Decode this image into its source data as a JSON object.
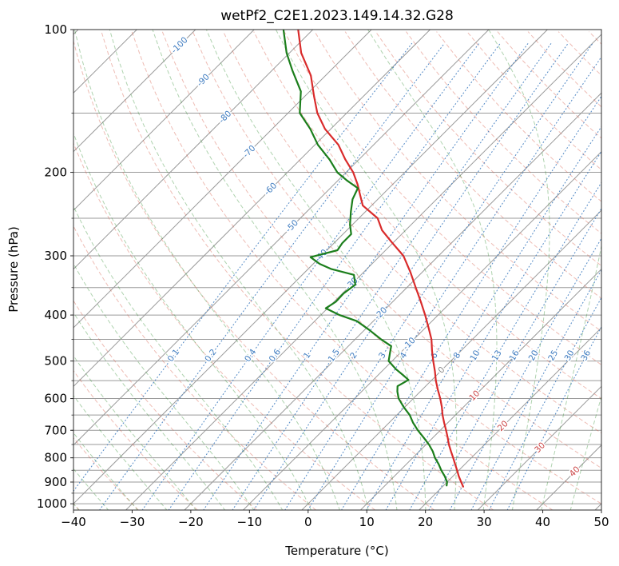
{
  "title": "wetPf2_C2E1.2023.149.14.32.G28",
  "chart_data": {
    "type": "line",
    "variant": "skew-t-log-p-sounding",
    "title": "wetPf2_C2E1.2023.149.14.32.G28",
    "axes": {
      "xlabel": "Temperature (°C)",
      "ylabel": "Pressure (hPa)",
      "t_min": -40,
      "t_max": 50,
      "p_top": 100,
      "p_bottom": 1031,
      "skew_deg_per_decade": 80.8,
      "x_ticks": [
        {
          "v": -40,
          "label": "−40"
        },
        {
          "v": -30,
          "label": "−30"
        },
        {
          "v": -20,
          "label": "−20"
        },
        {
          "v": -10,
          "label": "−10"
        },
        {
          "v": 0,
          "label": "0"
        },
        {
          "v": 10,
          "label": "10"
        },
        {
          "v": 20,
          "label": "20"
        },
        {
          "v": 30,
          "label": "30"
        },
        {
          "v": 40,
          "label": "40"
        },
        {
          "v": 50,
          "label": "50"
        }
      ],
      "y_ticks": [
        {
          "p": 100,
          "label": "100"
        },
        {
          "p": 200,
          "label": "200"
        },
        {
          "p": 300,
          "label": "300"
        },
        {
          "p": 400,
          "label": "400"
        },
        {
          "p": 500,
          "label": "500"
        },
        {
          "p": 600,
          "label": "600"
        },
        {
          "p": 700,
          "label": "700"
        },
        {
          "p": 800,
          "label": "800"
        },
        {
          "p": 900,
          "label": "900"
        },
        {
          "p": 1000,
          "label": "1000"
        }
      ]
    },
    "background": {
      "pressure_grid_step": 50,
      "isotherms": {
        "min": -160,
        "max": 60,
        "step": 10
      },
      "dry_adiabats": {
        "min": -40,
        "max": 200,
        "step": 10
      },
      "moist_adiabats": {
        "min": -40,
        "max": 45,
        "step": 5
      },
      "mixing_ratios_g_kg": [
        0.1,
        0.2,
        0.4,
        0.6,
        1,
        1.5,
        2,
        3,
        4,
        6,
        8,
        10,
        13,
        16,
        20,
        25,
        30,
        36
      ],
      "mixing_label_pressure": 487
    },
    "isotherm_labels": [
      {
        "value": -100,
        "p": 108
      },
      {
        "value": -90,
        "p": 128
      },
      {
        "value": -80,
        "p": 153
      },
      {
        "value": -70,
        "p": 181
      },
      {
        "value": -60,
        "p": 217
      },
      {
        "value": -50,
        "p": 260
      },
      {
        "value": -40,
        "p": 300
      },
      {
        "value": -30,
        "p": 344
      },
      {
        "value": -20,
        "p": 397
      },
      {
        "value": -10,
        "p": 460
      },
      {
        "value": 0,
        "p": 523
      },
      {
        "value": 10,
        "p": 592
      },
      {
        "value": 20,
        "p": 686
      },
      {
        "value": 30,
        "p": 762
      },
      {
        "value": 40,
        "p": 856
      }
    ],
    "colors": {
      "temperature": "#d92b2b",
      "dewpoint": "#1b7e1b",
      "isotherm": "#9a9a9a",
      "grid": "#9a9a9a",
      "dry_adiabat": "#d65f4d",
      "moist_adiabat": "#2e8b2e",
      "mixing": "#3f7cc0",
      "frame": "#2b2b2b",
      "label_negative": "#3f7cc0",
      "label_zero": "#8a8a8a",
      "label_positive": "#cb4444"
    },
    "series": [
      {
        "name": "temperature",
        "points": [
          [
            100,
            -82.5
          ],
          [
            112,
            -78.0
          ],
          [
            125,
            -72.5
          ],
          [
            138,
            -68.5
          ],
          [
            150,
            -65.0
          ],
          [
            162,
            -61.0
          ],
          [
            175,
            -56.0
          ],
          [
            188,
            -52.3
          ],
          [
            200,
            -48.8
          ],
          [
            212,
            -46.0
          ],
          [
            222,
            -44.0
          ],
          [
            235,
            -41.5
          ],
          [
            250,
            -36.8
          ],
          [
            265,
            -34.0
          ],
          [
            280,
            -30.5
          ],
          [
            300,
            -26.0
          ],
          [
            325,
            -22.0
          ],
          [
            350,
            -18.5
          ],
          [
            375,
            -15.2
          ],
          [
            400,
            -12.2
          ],
          [
            425,
            -9.5
          ],
          [
            450,
            -7.0
          ],
          [
            475,
            -5.0
          ],
          [
            500,
            -3.0
          ],
          [
            525,
            -1.0
          ],
          [
            550,
            0.8
          ],
          [
            575,
            2.7
          ],
          [
            600,
            4.6
          ],
          [
            625,
            6.3
          ],
          [
            650,
            7.8
          ],
          [
            675,
            9.4
          ],
          [
            700,
            11.0
          ],
          [
            725,
            12.5
          ],
          [
            750,
            13.9
          ],
          [
            775,
            15.4
          ],
          [
            800,
            16.9
          ],
          [
            825,
            18.3
          ],
          [
            850,
            19.7
          ],
          [
            875,
            21.0
          ],
          [
            900,
            22.4
          ],
          [
            920,
            23.5
          ]
        ]
      },
      {
        "name": "dewpoint",
        "points": [
          [
            100,
            -85.0
          ],
          [
            112,
            -80.5
          ],
          [
            122,
            -76.5
          ],
          [
            135,
            -71.5
          ],
          [
            150,
            -68.0
          ],
          [
            162,
            -63.5
          ],
          [
            175,
            -59.5
          ],
          [
            188,
            -55.0
          ],
          [
            200,
            -51.5
          ],
          [
            208,
            -48.5
          ],
          [
            216,
            -45.3
          ],
          [
            228,
            -44.3
          ],
          [
            242,
            -42.5
          ],
          [
            258,
            -40.4
          ],
          [
            270,
            -38.6
          ],
          [
            282,
            -38.6
          ],
          [
            292,
            -38.2
          ],
          [
            302,
            -41.6
          ],
          [
            312,
            -38.9
          ],
          [
            320,
            -36.0
          ],
          [
            329,
            -31.2
          ],
          [
            345,
            -29.3
          ],
          [
            360,
            -29.8
          ],
          [
            375,
            -29.7
          ],
          [
            387,
            -30.3
          ],
          [
            400,
            -26.8
          ],
          [
            412,
            -22.8
          ],
          [
            430,
            -19.2
          ],
          [
            450,
            -15.6
          ],
          [
            465,
            -12.7
          ],
          [
            480,
            -11.8
          ],
          [
            500,
            -10.6
          ],
          [
            520,
            -8.0
          ],
          [
            535,
            -5.8
          ],
          [
            548,
            -4.0
          ],
          [
            565,
            -4.8
          ],
          [
            580,
            -3.9
          ],
          [
            600,
            -2.5
          ],
          [
            625,
            -0.2
          ],
          [
            650,
            2.2
          ],
          [
            675,
            4.1
          ],
          [
            700,
            6.2
          ],
          [
            725,
            8.4
          ],
          [
            750,
            10.5
          ],
          [
            775,
            12.3
          ],
          [
            800,
            13.8
          ],
          [
            825,
            15.5
          ],
          [
            850,
            17.0
          ],
          [
            875,
            18.6
          ],
          [
            900,
            20.0
          ],
          [
            915,
            20.5
          ]
        ]
      }
    ]
  }
}
